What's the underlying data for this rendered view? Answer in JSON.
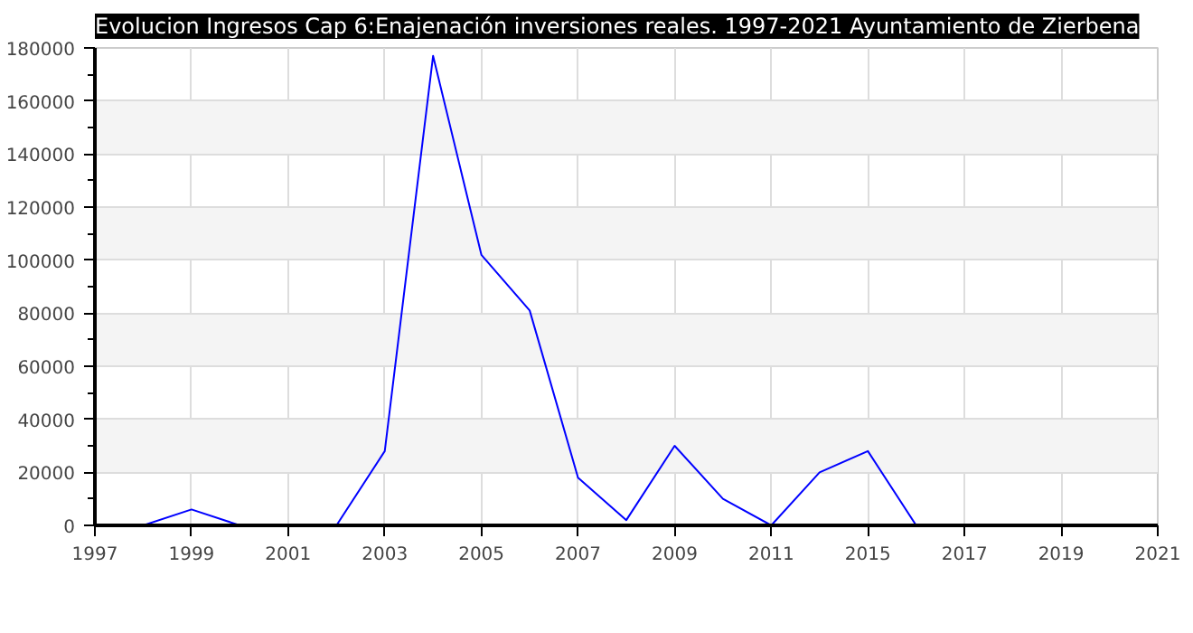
{
  "chart_data": {
    "type": "line",
    "title": "Evolucion Ingresos Cap 6:Enajenación inversiones reales. 1997-2021 Ayuntamiento de Zierbena",
    "categories": [
      "1997",
      null,
      "1999",
      null,
      "2001",
      null,
      "2003",
      null,
      "2005",
      null,
      "2007",
      null,
      "2009",
      null,
      "2011",
      null,
      "2015",
      null,
      "2017",
      null,
      "2019",
      null,
      "2021"
    ],
    "series": [
      {
        "color": "#0000ff",
        "values": [
          null,
          0,
          6000,
          0,
          0,
          0,
          28000,
          177000,
          102000,
          81000,
          18000,
          2000,
          30000,
          10000,
          0,
          20000,
          28000,
          0,
          null,
          null,
          null,
          null,
          null
        ]
      }
    ],
    "ylim": [
      0,
      180000
    ],
    "yticks": [
      0,
      20000,
      40000,
      60000,
      80000,
      100000,
      120000,
      140000,
      160000,
      180000
    ],
    "grid": true,
    "marker": "none",
    "line_style": "solid"
  }
}
